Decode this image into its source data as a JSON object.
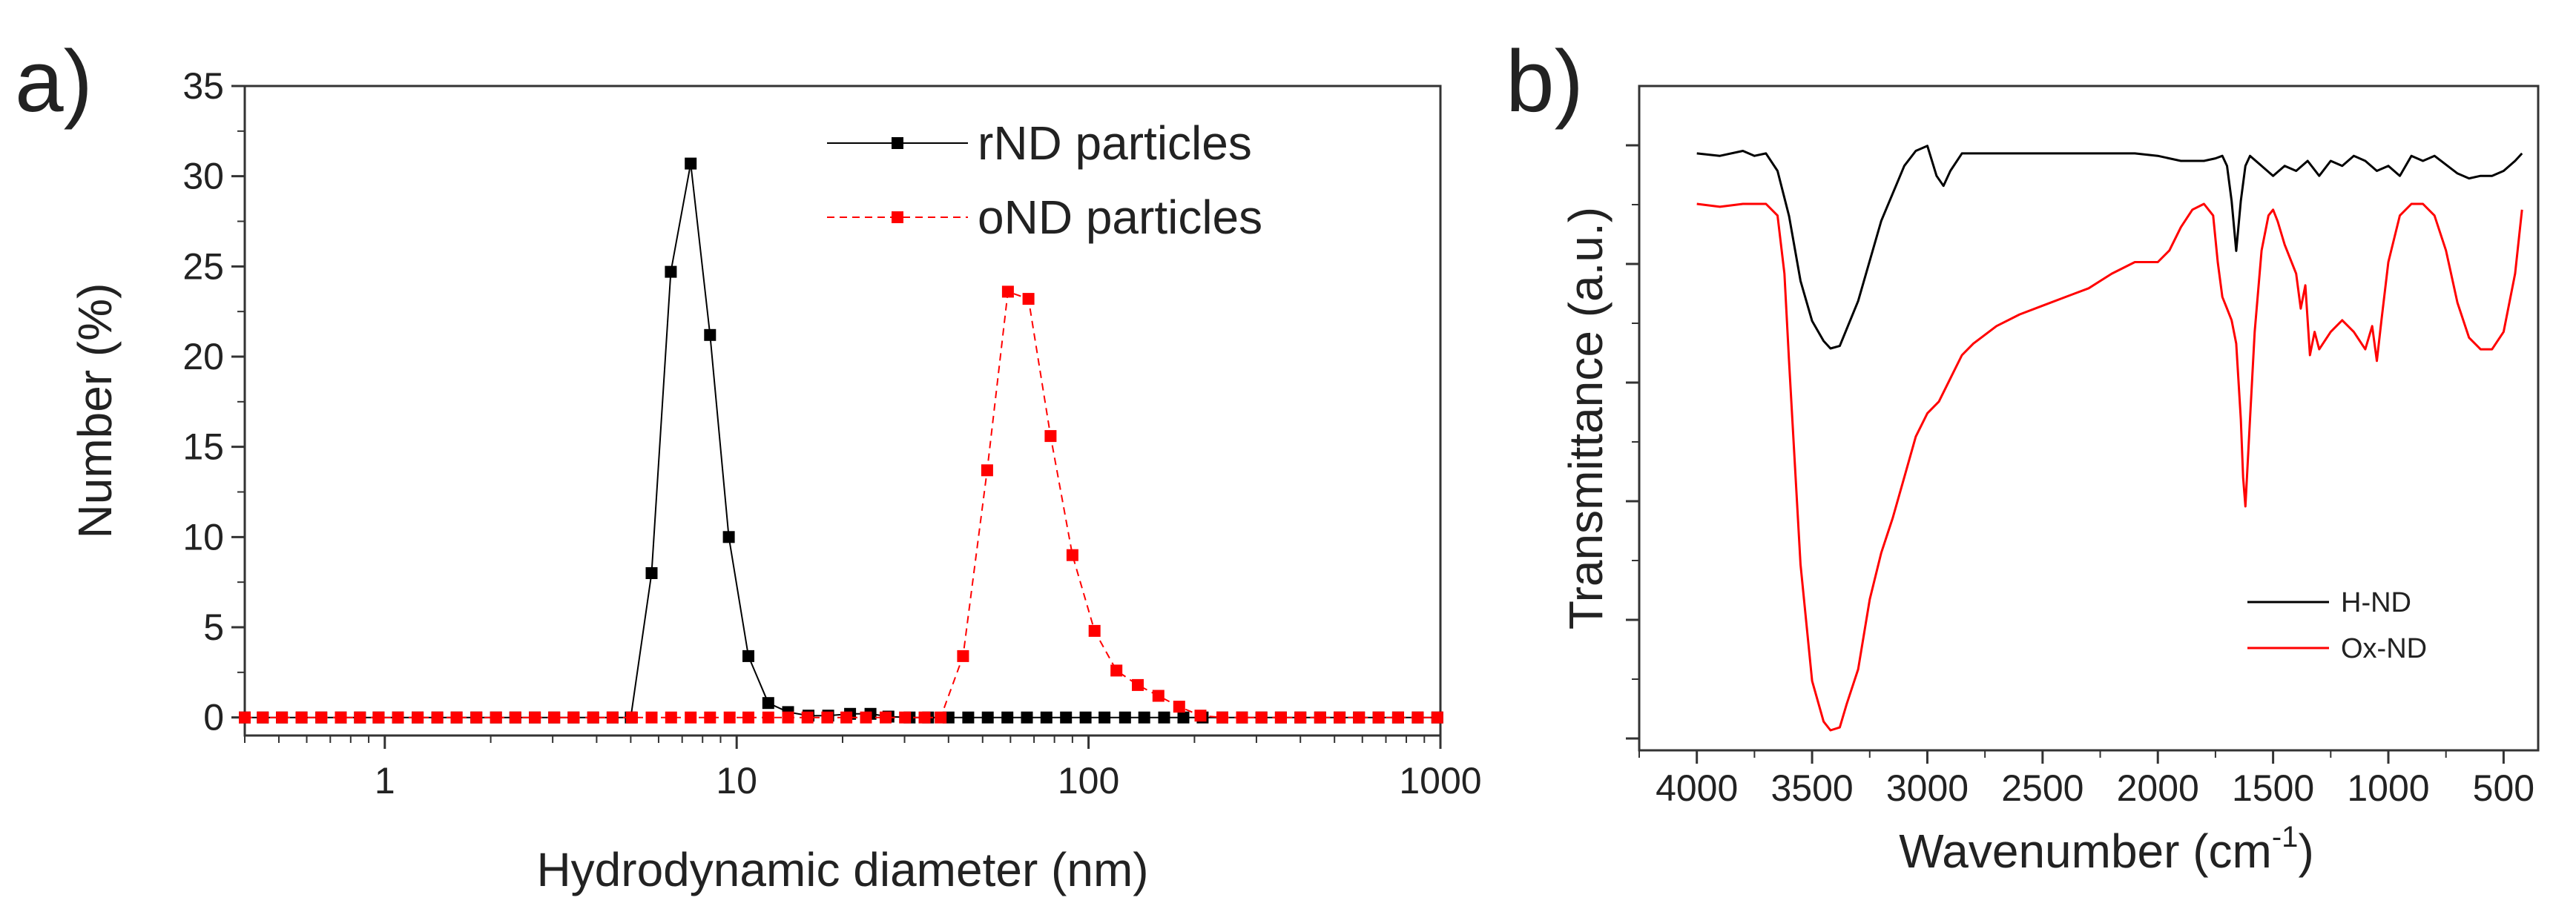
{
  "chart_data": [
    {
      "type": "line",
      "panel_label": "a)",
      "title": "",
      "xlabel": "Hydrodynamic diameter (nm)",
      "ylabel": "Number (%)",
      "xscale": "log",
      "xlim": [
        0.4,
        1000
      ],
      "ylim": [
        -1,
        35
      ],
      "x_ticks": [
        1,
        10,
        100,
        1000
      ],
      "x_tick_labels": [
        "1",
        "10",
        "100",
        "1000"
      ],
      "y_ticks": [
        0,
        5,
        10,
        15,
        20,
        25,
        30,
        35
      ],
      "y_tick_labels": [
        "0",
        "5",
        "10",
        "15",
        "20",
        "25",
        "30",
        "35"
      ],
      "legend_position": "top-right",
      "series": [
        {
          "name": "rND particles",
          "color": "#000000",
          "line_style": "solid",
          "marker": "square",
          "x": [
            0.4,
            0.45,
            0.51,
            0.58,
            0.66,
            0.75,
            0.85,
            0.96,
            1.09,
            1.24,
            1.41,
            1.6,
            1.82,
            2.07,
            2.35,
            2.67,
            3.03,
            3.44,
            3.91,
            4.44,
            5.0,
            5.73,
            6.5,
            7.4,
            8.4,
            9.5,
            10.8,
            12.3,
            14.0,
            16.0,
            18.2,
            21.0,
            24.0,
            27.0,
            31.0,
            35.0,
            40.0,
            45.5,
            51.7,
            58.8,
            66.8,
            75.9,
            86.3,
            98.1,
            111,
            127,
            144,
            164,
            186,
            211,
            240,
            273,
            310,
            352,
            400,
            455,
            517,
            587,
            667,
            758,
            862,
            980
          ],
          "y": [
            0,
            0,
            0,
            0,
            0,
            0,
            0,
            0,
            0,
            0,
            0,
            0,
            0,
            0,
            0,
            0,
            0,
            0,
            0,
            0,
            0,
            8.0,
            24.7,
            30.7,
            21.2,
            10.0,
            3.4,
            0.8,
            0.3,
            0.1,
            0.1,
            0.2,
            0.2,
            0.05,
            0,
            0,
            0,
            0,
            0,
            0,
            0,
            0,
            0,
            0,
            0,
            0,
            0,
            0,
            0,
            0,
            0,
            0,
            0,
            0,
            0,
            0,
            0,
            0,
            0,
            0,
            0,
            0
          ]
        },
        {
          "name": "oND particles",
          "color": "#ff0000",
          "line_style": "dashed",
          "marker": "square",
          "x": [
            0.4,
            0.45,
            0.51,
            0.58,
            0.66,
            0.75,
            0.85,
            0.96,
            1.09,
            1.24,
            1.41,
            1.6,
            1.82,
            2.07,
            2.35,
            2.67,
            3.03,
            3.44,
            3.91,
            4.44,
            5.04,
            5.73,
            6.51,
            7.4,
            8.4,
            9.55,
            10.8,
            12.3,
            14.0,
            15.9,
            18.1,
            20.5,
            23.3,
            26.5,
            30.1,
            34.2,
            38.0,
            44.0,
            51.5,
            59.0,
            67.5,
            78.0,
            90.0,
            104,
            120,
            138,
            158,
            181,
            208,
            240,
            273,
            310,
            352,
            400,
            455,
            517,
            587,
            667,
            758,
            862,
            980
          ],
          "y": [
            0,
            0,
            0,
            0,
            0,
            0,
            0,
            0,
            0,
            0,
            0,
            0,
            0,
            0,
            0,
            0,
            0,
            0,
            0,
            0,
            0,
            0,
            0,
            0,
            0,
            0,
            0,
            0,
            0,
            0,
            0,
            0,
            0,
            0,
            0,
            0,
            0,
            3.4,
            13.7,
            23.6,
            23.2,
            15.6,
            9.0,
            4.8,
            2.6,
            1.8,
            1.2,
            0.6,
            0.1,
            0,
            0,
            0,
            0,
            0,
            0,
            0,
            0,
            0,
            0,
            0,
            0
          ]
        }
      ]
    },
    {
      "type": "line",
      "panel_label": "b)",
      "title": "",
      "xlabel": "Wavenumber (cm",
      "xlabel_superscript": "-1",
      "xlabel_suffix": ")",
      "ylabel": "Transmittance (a.u.)",
      "xlim": [
        4250,
        350
      ],
      "x_reversed": true,
      "x_ticks": [
        4000,
        3500,
        3000,
        2500,
        2000,
        1500,
        1000,
        500
      ],
      "x_tick_labels": [
        "4000",
        "3500",
        "3000",
        "2500",
        "2000",
        "1500",
        "1000",
        "500"
      ],
      "y_tick_labels_shown": false,
      "y_ticks_count": 6,
      "legend_position": "bottom-right",
      "series": [
        {
          "name": "H-ND",
          "color": "#000000",
          "x": [
            4000,
            3900,
            3800,
            3750,
            3700,
            3650,
            3600,
            3550,
            3500,
            3450,
            3420,
            3380,
            3300,
            3200,
            3100,
            3050,
            3000,
            2960,
            2930,
            2900,
            2850,
            2800,
            2700,
            2500,
            2300,
            2100,
            2000,
            1900,
            1800,
            1750,
            1720,
            1700,
            1680,
            1660,
            1640,
            1620,
            1600,
            1550,
            1500,
            1450,
            1400,
            1350,
            1300,
            1250,
            1200,
            1150,
            1100,
            1050,
            1000,
            950,
            900,
            850,
            800,
            700,
            650,
            600,
            550,
            500,
            450,
            420
          ],
          "y": [
            97.5,
            97,
            98,
            97,
            97.5,
            94,
            85,
            72,
            64,
            60,
            58.5,
            59,
            68,
            84,
            95,
            98,
            99,
            93,
            91,
            94,
            97.5,
            97.5,
            97.5,
            97.5,
            97.5,
            97.5,
            97,
            96,
            96,
            96.5,
            97,
            95,
            88,
            78,
            88,
            95,
            97,
            95,
            93,
            95,
            94,
            96,
            93,
            96,
            95,
            97,
            96,
            94,
            95,
            93,
            97,
            96,
            97,
            93.5,
            92.5,
            93,
            93,
            94,
            96,
            97.5
          ]
        },
        {
          "name": "Ox-ND",
          "color": "#ff0000",
          "x": [
            4000,
            3900,
            3800,
            3750,
            3700,
            3650,
            3620,
            3600,
            3550,
            3500,
            3450,
            3420,
            3380,
            3350,
            3300,
            3250,
            3200,
            3150,
            3100,
            3050,
            3000,
            2950,
            2900,
            2850,
            2800,
            2700,
            2600,
            2500,
            2400,
            2300,
            2200,
            2100,
            2000,
            1950,
            1900,
            1850,
            1800,
            1760,
            1740,
            1720,
            1700,
            1680,
            1660,
            1640,
            1630,
            1620,
            1600,
            1580,
            1550,
            1520,
            1500,
            1480,
            1450,
            1400,
            1380,
            1360,
            1340,
            1320,
            1300,
            1250,
            1200,
            1150,
            1100,
            1070,
            1050,
            1030,
            1000,
            950,
            900,
            850,
            800,
            750,
            700,
            650,
            600,
            550,
            500,
            450,
            420
          ],
          "y": [
            92,
            91.5,
            92,
            92,
            92,
            90,
            80,
            65,
            30,
            10,
            3,
            1.5,
            2,
            6,
            12,
            24,
            32,
            38,
            45,
            52,
            56,
            58,
            62,
            66,
            68,
            71,
            73,
            74.5,
            76,
            77.5,
            80,
            82,
            82,
            84,
            88,
            91,
            92,
            90,
            82,
            76,
            74,
            72,
            68,
            55,
            45,
            40,
            55,
            70,
            84,
            90,
            91,
            89,
            85,
            80,
            74,
            78,
            66,
            70,
            67,
            70,
            72,
            70,
            67,
            71,
            65,
            72,
            82,
            90,
            92,
            92,
            90,
            84,
            75,
            69,
            67,
            67,
            70,
            80,
            91
          ]
        }
      ]
    }
  ]
}
